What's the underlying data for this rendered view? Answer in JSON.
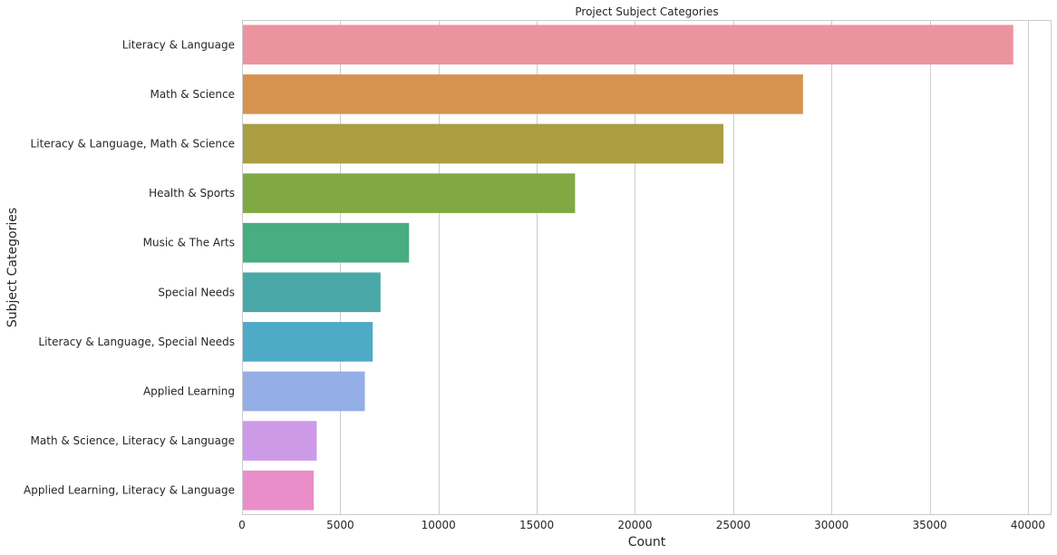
{
  "chart_data": {
    "type": "bar",
    "orientation": "horizontal",
    "title": "Project Subject Categories",
    "xlabel": "Count",
    "ylabel": "Subject Categories",
    "xlim": [
      0,
      41200
    ],
    "xticks": [
      0,
      5000,
      10000,
      15000,
      20000,
      25000,
      30000,
      35000,
      40000
    ],
    "grid": "vertical",
    "categories": [
      "Literacy & Language",
      "Math & Science",
      "Literacy & Language, Math & Science",
      "Health & Sports",
      "Music & The Arts",
      "Special Needs",
      "Literacy & Language, Special Needs",
      "Applied Learning",
      "Math & Science, Literacy & Language",
      "Applied Learning, Literacy & Language"
    ],
    "values": [
      39250,
      28550,
      24500,
      16950,
      8500,
      7050,
      6650,
      6250,
      3800,
      3650
    ],
    "colors": [
      "#eb949f",
      "#d69350",
      "#ab9e43",
      "#80a944",
      "#48ad80",
      "#4aa9a8",
      "#4eaac6",
      "#94aee6",
      "#cd9ae8",
      "#e98ec9"
    ]
  }
}
